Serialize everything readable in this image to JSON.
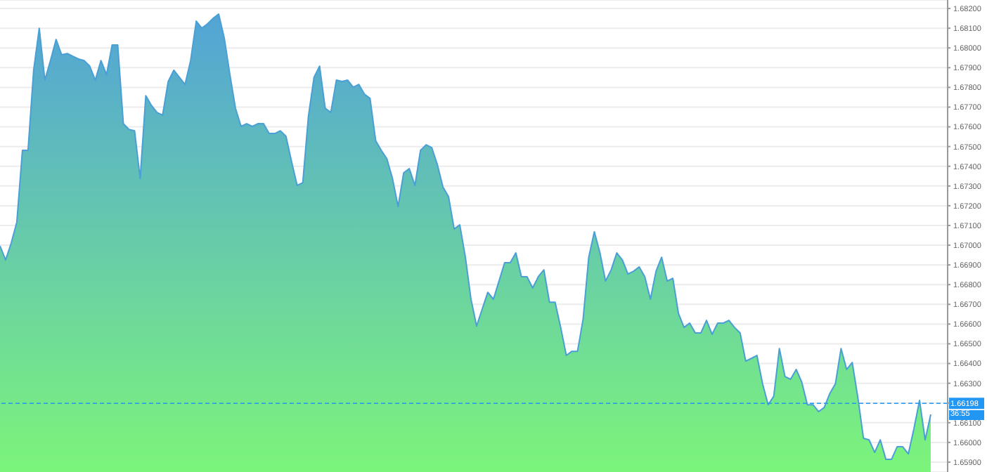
{
  "chart_data": {
    "type": "area",
    "categories": [
      null,
      null,
      null,
      null,
      null,
      null,
      null,
      null,
      null,
      null,
      null,
      null,
      null,
      null,
      null,
      null,
      null,
      null,
      null,
      null,
      null,
      null,
      null,
      null,
      null,
      null,
      null,
      null,
      null,
      null,
      null,
      null,
      null,
      null,
      null,
      null,
      null,
      null,
      null,
      null,
      null,
      null,
      null,
      null,
      null,
      null,
      null,
      null,
      null,
      null,
      null,
      null,
      null,
      null,
      null,
      null,
      null,
      null,
      null,
      null,
      null,
      null,
      null,
      null,
      null,
      null,
      null,
      null,
      null,
      null,
      null,
      null,
      null,
      null,
      null,
      null,
      null,
      null,
      null,
      null,
      null,
      null,
      null,
      null,
      null,
      null,
      null,
      null,
      null,
      null,
      null,
      null,
      null,
      null,
      null,
      null,
      null,
      null,
      null,
      null,
      null,
      null,
      null,
      null,
      null,
      null,
      null,
      null,
      null,
      null,
      null,
      null,
      null,
      null,
      null,
      null,
      null,
      null,
      null,
      null,
      null,
      null,
      null,
      null,
      null,
      null,
      null,
      null,
      null,
      null,
      null,
      null,
      null,
      null,
      null,
      null,
      null,
      null,
      null,
      null,
      null,
      null,
      null,
      null,
      null,
      null,
      null,
      null,
      null,
      null,
      null,
      null,
      null,
      null,
      null,
      null,
      null,
      null,
      null,
      null,
      null,
      null,
      null,
      null,
      null,
      null,
      null
    ],
    "series": [
      {
        "color": "#4a9fd4",
        "values": [
          1.66996,
          1.66925,
          1.67011,
          1.67117,
          1.67481,
          1.67481,
          1.67887,
          1.681,
          1.67837,
          1.67936,
          1.68043,
          1.67965,
          1.67972,
          1.67958,
          1.67944,
          1.67936,
          1.67908,
          1.67837,
          1.67936,
          1.67865,
          1.68015,
          1.68015,
          1.67616,
          1.67587,
          1.6758,
          1.67338,
          1.67758,
          1.67709,
          1.67673,
          1.67659,
          1.6783,
          1.67887,
          1.67851,
          1.67815,
          1.67936,
          1.68136,
          1.681,
          1.68122,
          1.6815,
          1.68172,
          1.6805,
          1.67865,
          1.67694,
          1.67602,
          1.67616,
          1.67602,
          1.67616,
          1.67616,
          1.67566,
          1.67566,
          1.6758,
          1.67552,
          1.67424,
          1.67303,
          1.67317,
          1.67652,
          1.67851,
          1.67908,
          1.67694,
          1.67673,
          1.67837,
          1.6783,
          1.67837,
          1.67801,
          1.67815,
          1.67766,
          1.67744,
          1.6753,
          1.67481,
          1.67438,
          1.67338,
          1.67196,
          1.67367,
          1.67388,
          1.67303,
          1.67481,
          1.67509,
          1.67495,
          1.67409,
          1.67295,
          1.67246,
          1.67082,
          1.67103,
          1.66939,
          1.66726,
          1.6659,
          1.66676,
          1.66761,
          1.66726,
          1.66818,
          1.66911,
          1.66911,
          1.66961,
          1.6684,
          1.6684,
          1.66783,
          1.6684,
          1.66875,
          1.66711,
          1.66711,
          1.66583,
          1.66441,
          1.66462,
          1.66462,
          1.66626,
          1.66939,
          1.67068,
          1.66961,
          1.66818,
          1.66875,
          1.66961,
          1.66925,
          1.66854,
          1.66868,
          1.6689,
          1.6684,
          1.66726,
          1.66868,
          1.66939,
          1.66818,
          1.66832,
          1.66654,
          1.66583,
          1.66605,
          1.66555,
          1.66555,
          1.66619,
          1.66548,
          1.66605,
          1.66605,
          1.66619,
          1.66583,
          1.66555,
          1.66412,
          1.66426,
          1.66441,
          1.66298,
          1.66191,
          1.66234,
          1.66476,
          1.66334,
          1.6632,
          1.6637,
          1.66305,
          1.66191,
          1.66191,
          1.66156,
          1.66177,
          1.66248,
          1.66298,
          1.66476,
          1.6637,
          1.66405,
          1.66227,
          1.66021,
          1.66013,
          1.65949,
          1.66013,
          1.65914,
          1.65914,
          1.65978,
          1.65978,
          1.65942,
          1.6607,
          1.66213,
          1.66013,
          1.66142
        ]
      }
    ],
    "ylim": [
      1.6585,
      1.68243
    ],
    "yticks": [
      {
        "value": 1.659,
        "label": "1.65900"
      },
      {
        "value": 1.66,
        "label": "1.66000"
      },
      {
        "value": 1.661,
        "label": "1.66100"
      },
      {
        "value": 1.662,
        "label": null
      },
      {
        "value": 1.663,
        "label": "1.66300"
      },
      {
        "value": 1.664,
        "label": "1.66400"
      },
      {
        "value": 1.665,
        "label": "1.66500"
      },
      {
        "value": 1.666,
        "label": "1.66600"
      },
      {
        "value": 1.667,
        "label": "1.66700"
      },
      {
        "value": 1.668,
        "label": "1.66800"
      },
      {
        "value": 1.669,
        "label": "1.66900"
      },
      {
        "value": 1.67,
        "label": "1.67000"
      },
      {
        "value": 1.671,
        "label": "1.67100"
      },
      {
        "value": 1.672,
        "label": "1.67200"
      },
      {
        "value": 1.673,
        "label": "1.67300"
      },
      {
        "value": 1.674,
        "label": "1.67400"
      },
      {
        "value": 1.675,
        "label": "1.67500"
      },
      {
        "value": 1.676,
        "label": "1.67600"
      },
      {
        "value": 1.677,
        "label": "1.67700"
      },
      {
        "value": 1.678,
        "label": "1.67800"
      },
      {
        "value": 1.679,
        "label": "1.67900"
      },
      {
        "value": 1.68,
        "label": "1.68000"
      },
      {
        "value": 1.681,
        "label": "1.68100"
      },
      {
        "value": 1.682,
        "label": "1.68200"
      }
    ],
    "ref_lines": [
      {
        "axis": "y",
        "value": 1.66198,
        "label": "1.66198",
        "color": "#2196f3",
        "line_style": "dashed"
      }
    ],
    "annotations": [
      "36:55"
    ],
    "tick_labels": "y",
    "grid": "y",
    "marker": "none",
    "line_style": "solid"
  }
}
